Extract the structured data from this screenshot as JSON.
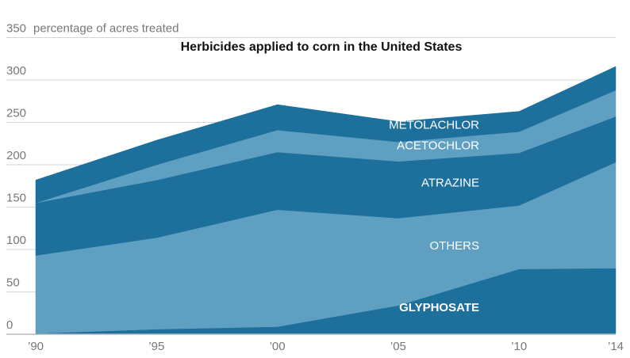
{
  "chart_data": {
    "type": "area",
    "stacked": true,
    "title": "Herbicides applied to corn in the United States",
    "ylabel": "percentage of acres treated",
    "ylim": [
      0,
      350
    ],
    "yticks": [
      "350",
      "300",
      "250",
      "200",
      "150",
      "100",
      "50",
      "0"
    ],
    "ytick_values": [
      350,
      300,
      250,
      200,
      150,
      100,
      50,
      0
    ],
    "x": [
      1990,
      1995,
      2000,
      2005,
      2010,
      2014
    ],
    "xtick_labels": [
      "’90",
      "’95",
      "’00",
      "’05",
      "’10",
      "’14"
    ],
    "grid": true,
    "series": [
      {
        "name": "GLYPHOSATE",
        "values": [
          0,
          5,
          8,
          33,
          76,
          77
        ],
        "color": "#1d6f9c"
      },
      {
        "name": "OTHERS",
        "values": [
          92,
          108,
          138,
          103,
          75,
          125
        ],
        "color": "#5f9fc2"
      },
      {
        "name": "ATRAZINE",
        "values": [
          62,
          68,
          68,
          67,
          62,
          54
        ],
        "color": "#1d6f9c"
      },
      {
        "name": "ACETOCHLOR",
        "values": [
          0,
          18,
          26,
          23,
          25,
          31
        ],
        "color": "#5f9fc2"
      },
      {
        "name": "METOLACHLOR",
        "values": [
          27,
          29,
          30,
          24,
          24,
          28
        ],
        "color": "#1d6f9c"
      }
    ]
  }
}
